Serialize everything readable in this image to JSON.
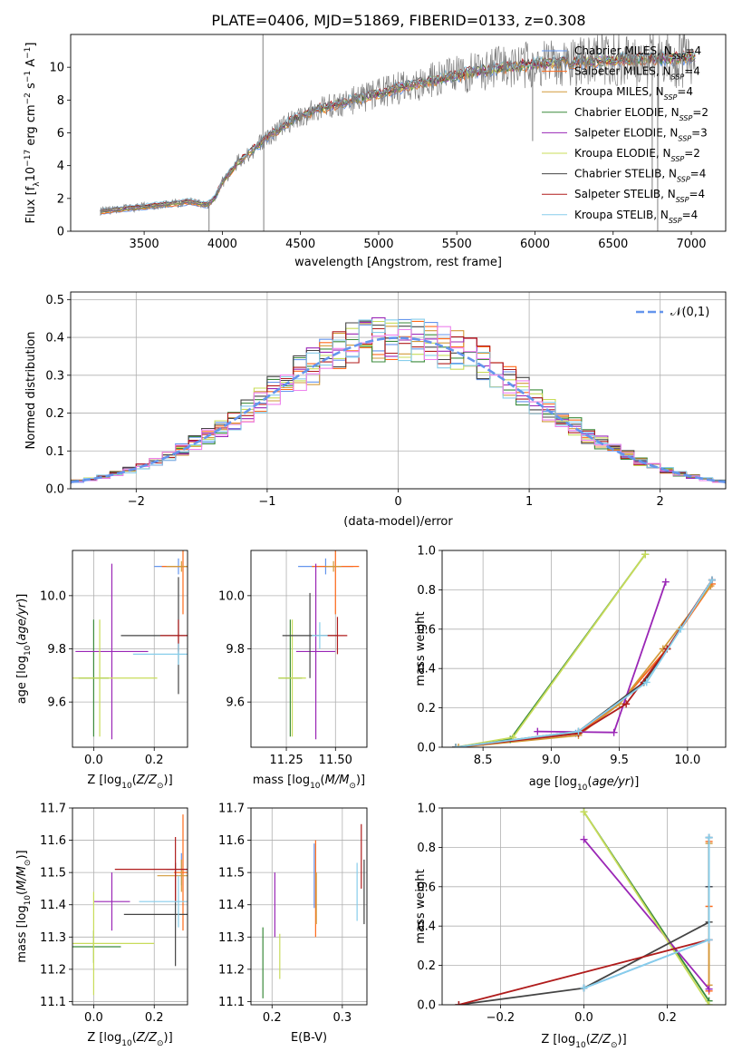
{
  "figure_title": "PLATE=0406, MJD=51869, FIBERID=0133, z=0.308",
  "colors": {
    "Chabrier MILES": "#6495ed",
    "Salpeter MILES": "#ff6a1a",
    "Kroupa MILES": "#d29a3a",
    "Chabrier ELODIE": "#3a8a3a",
    "Salpeter ELODIE": "#9a26b6",
    "Kroupa ELODIE": "#c8dc5a",
    "Chabrier STELIB": "#444444",
    "Salpeter STELIB": "#b01c1c",
    "Kroupa STELIB": "#87ceeb",
    "extra_pink": "#ee82ee",
    "extra_lime": "#b4e650",
    "data": "#808080"
  },
  "legend_spectrum": [
    {
      "key": "Chabrier MILES",
      "label": "Chabrier MILES, N",
      "sub": "SSP",
      "tail": "=4"
    },
    {
      "key": "Salpeter MILES",
      "label": "Salpeter MILES, N",
      "sub": "SSP",
      "tail": "=4"
    },
    {
      "key": "Kroupa MILES",
      "label": "Kroupa MILES, N",
      "sub": "SSP",
      "tail": "=4"
    },
    {
      "key": "Chabrier ELODIE",
      "label": "Chabrier ELODIE, N",
      "sub": "SSP",
      "tail": "=2"
    },
    {
      "key": "Salpeter ELODIE",
      "label": "Salpeter ELODIE, N",
      "sub": "SSP",
      "tail": "=3"
    },
    {
      "key": "Kroupa ELODIE",
      "label": "Kroupa ELODIE, N",
      "sub": "SSP",
      "tail": "=2"
    },
    {
      "key": "Chabrier STELIB",
      "label": "Chabrier STELIB, N",
      "sub": "SSP",
      "tail": "=4"
    },
    {
      "key": "Salpeter STELIB",
      "label": "Salpeter STELIB, N",
      "sub": "SSP",
      "tail": "=4"
    },
    {
      "key": "Kroupa STELIB",
      "label": "Kroupa STELIB, N",
      "sub": "SSP",
      "tail": "=4"
    }
  ],
  "chart_data": [
    {
      "id": "spectrum",
      "type": "line",
      "xlabel": "wavelength [Angstrom, rest frame]",
      "ylabel": "Flux [f_λ 10^-17 erg cm^-2 s^-1 A^-1]",
      "xlim": [
        3030,
        7220
      ],
      "ylim": [
        0,
        12
      ],
      "xticks": [
        3500,
        4000,
        4500,
        5000,
        5500,
        6000,
        6500,
        7000
      ],
      "yticks": [
        0,
        2,
        4,
        6,
        8,
        10
      ],
      "continuum_x": [
        3220,
        3400,
        3600,
        3800,
        3900,
        3950,
        4000,
        4100,
        4200,
        4300,
        4400,
        4500,
        4600,
        4800,
        5000,
        5200,
        5400,
        5600,
        5800,
        6000,
        6200,
        6400,
        6600,
        6800,
        7000,
        7030
      ],
      "continuum_y": [
        1.2,
        1.4,
        1.6,
        1.8,
        1.6,
        2.0,
        3.0,
        4.2,
        5.0,
        5.8,
        6.5,
        7.0,
        7.4,
        7.9,
        8.4,
        8.9,
        9.3,
        9.7,
        10.0,
        10.2,
        10.3,
        10.4,
        10.5,
        10.5,
        10.6,
        10.6
      ],
      "grid": false
    },
    {
      "id": "residuals",
      "type": "line",
      "xlabel": "(data-model)/error",
      "ylabel": "Normed distribution",
      "xlim": [
        -2.5,
        2.5
      ],
      "ylim": [
        0,
        0.52
      ],
      "xticks": [
        -2,
        -1,
        0,
        1,
        2
      ],
      "yticks": [
        0,
        0.1,
        0.2,
        0.3,
        0.4,
        0.5
      ],
      "reference": {
        "name": "𝒩(0,1)",
        "mean": 0,
        "sigma": 1
      },
      "legend_position": "top-right",
      "grid": true
    },
    {
      "id": "age_vs_Z",
      "type": "scatter",
      "xlabel": "Z [log10(Z/Z☉)]",
      "ylabel": "age  [log10(age/yr)]",
      "xlim": [
        -0.07,
        0.31
      ],
      "ylim": [
        9.43,
        10.17
      ],
      "xticks": [
        0.0,
        0.2
      ],
      "yticks": [
        9.6,
        9.8,
        10.0
      ],
      "points": [
        {
          "key": "Chabrier MILES",
          "x": 0.28,
          "y": 10.11,
          "xerr": 0.08,
          "yerr": 0.03
        },
        {
          "key": "Salpeter MILES",
          "x": 0.295,
          "y": 10.11,
          "xerr": 0.07,
          "yerr": 0.18
        },
        {
          "key": "Kroupa MILES",
          "x": 0.29,
          "y": 10.11,
          "xerr": 0.05,
          "yerr": 0.02
        },
        {
          "key": "Chabrier ELODIE",
          "x": 0.0,
          "y": 9.69,
          "xerr": 0.05,
          "yerr": 0.22
        },
        {
          "key": "Salpeter ELODIE",
          "x": 0.06,
          "y": 9.79,
          "xerr": 0.12,
          "yerr": 0.33
        },
        {
          "key": "Kroupa ELODIE",
          "x": 0.02,
          "y": 9.69,
          "xerr": 0.19,
          "yerr": 0.22
        },
        {
          "key": "Chabrier STELIB",
          "x": 0.28,
          "y": 9.85,
          "xerr": 0.19,
          "yerr": 0.22
        },
        {
          "key": "Salpeter STELIB",
          "x": 0.28,
          "y": 9.85,
          "xerr": 0.06,
          "yerr": 0.06
        },
        {
          "key": "Kroupa STELIB",
          "x": 0.28,
          "y": 9.78,
          "xerr": 0.15,
          "yerr": 0.04
        }
      ],
      "grid": true
    },
    {
      "id": "age_vs_mass",
      "type": "scatter",
      "xlabel": "mass [log10(M/M☉)]",
      "ylabel": "",
      "xlim": [
        11.07,
        11.66
      ],
      "ylim": [
        9.43,
        10.17
      ],
      "xticks": [
        11.25,
        11.5
      ],
      "yticks": [
        9.6,
        9.8,
        10.0
      ],
      "points": [
        {
          "key": "Chabrier MILES",
          "x": 11.45,
          "y": 10.11,
          "xerr": 0.14,
          "yerr": 0.03
        },
        {
          "key": "Salpeter MILES",
          "x": 11.5,
          "y": 10.11,
          "xerr": 0.12,
          "yerr": 0.18
        },
        {
          "key": "Kroupa MILES",
          "x": 11.49,
          "y": 10.11,
          "xerr": 0.04,
          "yerr": 0.02
        },
        {
          "key": "Chabrier ELODIE",
          "x": 11.27,
          "y": 9.69,
          "xerr": 0.06,
          "yerr": 0.22
        },
        {
          "key": "Salpeter ELODIE",
          "x": 11.4,
          "y": 9.79,
          "xerr": 0.1,
          "yerr": 0.33
        },
        {
          "key": "Kroupa ELODIE",
          "x": 11.28,
          "y": 9.69,
          "xerr": 0.07,
          "yerr": 0.22
        },
        {
          "key": "Chabrier STELIB",
          "x": 11.37,
          "y": 9.85,
          "xerr": 0.14,
          "yerr": 0.16
        },
        {
          "key": "Salpeter STELIB",
          "x": 11.51,
          "y": 9.85,
          "xerr": 0.05,
          "yerr": 0.07
        },
        {
          "key": "Kroupa STELIB",
          "x": 11.42,
          "y": 9.85,
          "xerr": 0.04,
          "yerr": 0.05
        }
      ],
      "grid": true
    },
    {
      "id": "cumweight_vs_age",
      "type": "line",
      "xlabel": "age  [log10(age/yr)]",
      "ylabel": "mass weight",
      "xlim": [
        8.2,
        10.28
      ],
      "ylim": [
        0,
        1.0
      ],
      "xticks": [
        8.5,
        9.0,
        9.5,
        10.0
      ],
      "yticks": [
        0.0,
        0.2,
        0.4,
        0.6,
        0.8,
        1.0
      ],
      "series": [
        {
          "key": "Chabrier MILES",
          "x": [
            8.3,
            9.18,
            9.5,
            9.85,
            10.18
          ],
          "y": [
            0.0,
            0.07,
            0.22,
            0.5,
            0.85
          ]
        },
        {
          "key": "Salpeter MILES",
          "x": [
            8.3,
            9.2,
            9.5,
            9.85,
            10.18
          ],
          "y": [
            0.0,
            0.07,
            0.22,
            0.5,
            0.83
          ]
        },
        {
          "key": "Kroupa MILES",
          "x": [
            8.32,
            9.2,
            9.5,
            9.82,
            10.17
          ],
          "y": [
            0.0,
            0.06,
            0.22,
            0.5,
            0.82
          ]
        },
        {
          "key": "Chabrier ELODIE",
          "x": [
            8.3,
            8.7,
            9.69
          ],
          "y": [
            0.0,
            0.04,
            0.98
          ]
        },
        {
          "key": "Salpeter ELODIE",
          "x": [
            8.9,
            9.46,
            9.84
          ],
          "y": [
            0.08,
            0.075,
            0.84
          ]
        },
        {
          "key": "Kroupa ELODIE",
          "x": [
            8.3,
            8.72,
            9.69
          ],
          "y": [
            0.0,
            0.05,
            0.98
          ]
        },
        {
          "key": "Chabrier STELIB",
          "x": [
            8.3,
            9.2,
            9.68,
            9.85,
            10.18
          ],
          "y": [
            0.0,
            0.08,
            0.33,
            0.5,
            0.85
          ]
        },
        {
          "key": "Salpeter STELIB",
          "x": [
            8.3,
            9.2,
            9.55,
            9.85,
            10.18
          ],
          "y": [
            0.0,
            0.07,
            0.22,
            0.5,
            0.85
          ]
        },
        {
          "key": "Kroupa STELIB",
          "x": [
            8.3,
            9.2,
            9.7,
            9.95,
            10.18
          ],
          "y": [
            0.0,
            0.08,
            0.33,
            0.6,
            0.85
          ]
        }
      ],
      "grid": true
    },
    {
      "id": "mass_vs_Z",
      "type": "scatter",
      "xlabel": "Z [log10(Z/Z☉)]",
      "ylabel": "mass [log10(M/M☉)]",
      "xlim": [
        -0.07,
        0.31
      ],
      "ylim": [
        11.09,
        11.7
      ],
      "xticks": [
        0.0,
        0.2
      ],
      "yticks": [
        11.1,
        11.2,
        11.3,
        11.4,
        11.5,
        11.6,
        11.7
      ],
      "points": [
        {
          "key": "Chabrier MILES",
          "x": 0.29,
          "y": 11.51,
          "xerr": 0.05,
          "yerr": 0.05
        },
        {
          "key": "Salpeter MILES",
          "x": 0.295,
          "y": 11.5,
          "xerr": 0.03,
          "yerr": 0.18
        },
        {
          "key": "Kroupa MILES",
          "x": 0.29,
          "y": 11.49,
          "xerr": 0.08,
          "yerr": 0.05
        },
        {
          "key": "Chabrier ELODIE",
          "x": 0.0,
          "y": 11.27,
          "xerr": 0.09,
          "yerr": 0.05
        },
        {
          "key": "Salpeter ELODIE",
          "x": 0.06,
          "y": 11.41,
          "xerr": 0.06,
          "yerr": 0.09
        },
        {
          "key": "Kroupa ELODIE",
          "x": 0.0,
          "y": 11.28,
          "xerr": 0.2,
          "yerr": 0.16
        },
        {
          "key": "Chabrier STELIB",
          "x": 0.27,
          "y": 11.37,
          "xerr": 0.17,
          "yerr": 0.16
        },
        {
          "key": "Salpeter STELIB",
          "x": 0.27,
          "y": 11.51,
          "xerr": 0.2,
          "yerr": 0.1
        },
        {
          "key": "Kroupa STELIB",
          "x": 0.28,
          "y": 11.41,
          "xerr": 0.13,
          "yerr": 0.08
        }
      ],
      "grid": true
    },
    {
      "id": "mass_vs_ebv",
      "type": "scatter",
      "xlabel": "E(B-V)",
      "ylabel": "",
      "xlim": [
        0.17,
        0.335
      ],
      "ylim": [
        11.09,
        11.7
      ],
      "xticks": [
        0.2,
        0.3
      ],
      "yticks": [
        11.1,
        11.2,
        11.3,
        11.4,
        11.5,
        11.6,
        11.7
      ],
      "points": [
        {
          "key": "Chabrier MILES",
          "x": 0.26,
          "y": 11.49,
          "xerr": 0,
          "yerr": 0.1
        },
        {
          "key": "Salpeter MILES",
          "x": 0.262,
          "y": 11.45,
          "xerr": 0,
          "yerr": 0.15
        },
        {
          "key": "Kroupa MILES",
          "x": 0.263,
          "y": 11.42,
          "xerr": 0,
          "yerr": 0.08
        },
        {
          "key": "Chabrier ELODIE",
          "x": 0.187,
          "y": 11.22,
          "xerr": 0,
          "yerr": 0.11
        },
        {
          "key": "Salpeter ELODIE",
          "x": 0.204,
          "y": 11.4,
          "xerr": 0,
          "yerr": 0.1
        },
        {
          "key": "Kroupa ELODIE",
          "x": 0.211,
          "y": 11.24,
          "xerr": 0,
          "yerr": 0.07
        },
        {
          "key": "Chabrier STELIB",
          "x": 0.331,
          "y": 11.44,
          "xerr": 0,
          "yerr": 0.1
        },
        {
          "key": "Salpeter STELIB",
          "x": 0.327,
          "y": 11.55,
          "xerr": 0,
          "yerr": 0.1
        },
        {
          "key": "Kroupa STELIB",
          "x": 0.321,
          "y": 11.44,
          "xerr": 0,
          "yerr": 0.09
        }
      ],
      "grid": true
    },
    {
      "id": "cumweight_vs_Z",
      "type": "line",
      "xlabel": "Z [log10(Z/Z☉)]",
      "ylabel": "mass weight",
      "xlim": [
        -0.34,
        0.34
      ],
      "ylim": [
        0,
        1.0
      ],
      "xticks": [
        -0.2,
        0.0,
        0.2
      ],
      "yticks": [
        0.0,
        0.2,
        0.4,
        0.6,
        0.8,
        1.0
      ],
      "series": [
        {
          "key": "Chabrier MILES",
          "x": [
            0.0,
            0.3,
            0.3,
            0.3
          ],
          "y": [
            0.085,
            0.33,
            0.6,
            0.85
          ]
        },
        {
          "key": "Salpeter MILES",
          "x": [
            0.3,
            0.3,
            0.3
          ],
          "y": [
            0.07,
            0.5,
            0.83
          ]
        },
        {
          "key": "Kroupa MILES",
          "x": [
            0.3,
            0.3
          ],
          "y": [
            0.1,
            0.82
          ]
        },
        {
          "key": "Chabrier ELODIE",
          "x": [
            0.0,
            0.3
          ],
          "y": [
            0.98,
            0.02
          ]
        },
        {
          "key": "Salpeter ELODIE",
          "x": [
            0.0,
            0.3
          ],
          "y": [
            0.84,
            0.08
          ]
        },
        {
          "key": "Kroupa ELODIE",
          "x": [
            0.0,
            0.3
          ],
          "y": [
            0.98,
            0.0
          ]
        },
        {
          "key": "Chabrier STELIB",
          "x": [
            -0.3,
            0.0,
            0.3,
            0.3,
            0.3
          ],
          "y": [
            0.0,
            0.085,
            0.42,
            0.6,
            0.85
          ]
        },
        {
          "key": "Salpeter STELIB",
          "x": [
            -0.3,
            0.3
          ],
          "y": [
            0.0,
            0.33
          ]
        },
        {
          "key": "Kroupa STELIB",
          "x": [
            0.0,
            0.3,
            0.3
          ],
          "y": [
            0.085,
            0.33,
            0.85
          ]
        }
      ],
      "grid": true
    }
  ]
}
